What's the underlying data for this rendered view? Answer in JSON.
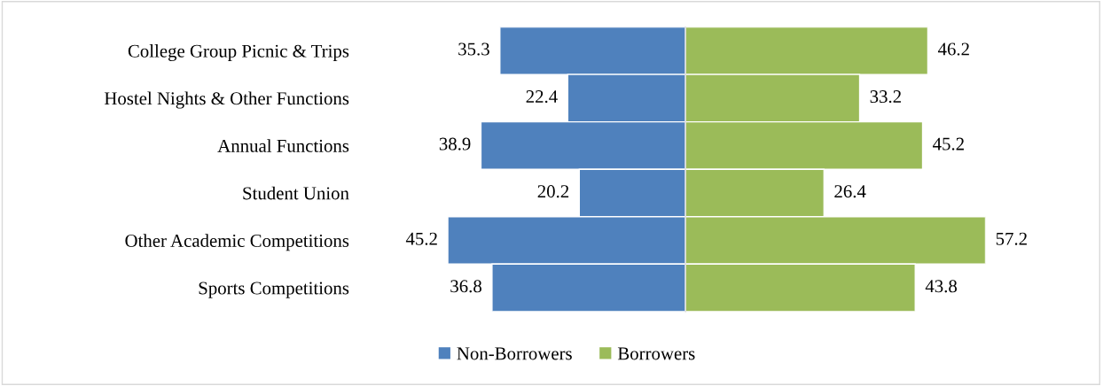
{
  "chart_data": [
    {
      "type": "bar",
      "orientation": "horizontal",
      "categories": [
        "College Group Picnic & Trips",
        "Hostel Nights & Other Functions",
        "Annual Functions",
        "Student Union",
        "Other Academic Competitions",
        "Sports Competitions"
      ],
      "series": [
        {
          "name": "Non-Borrowers",
          "color": "#4f81bd",
          "values": [
            35.3,
            22.4,
            38.9,
            20.2,
            45.2,
            36.8
          ]
        }
      ],
      "xlim": [
        45.2,
        0
      ],
      "tick_labels": "y",
      "data_labels": true,
      "legend": "bottom"
    },
    {
      "type": "bar",
      "orientation": "horizontal",
      "categories": [
        null,
        null,
        null,
        null,
        null,
        null
      ],
      "series": [
        {
          "name": "Borrowers",
          "color": "#9bbb59",
          "values": [
            46.2,
            33.2,
            45.2,
            26.4,
            57.2,
            43.8
          ],
          "value_labels": [
            "46.2",
            "33.2",
            "45.2",
            "26.4",
            "57.2",
            "43.8"
          ]
        }
      ],
      "xlim": [
        0,
        57.2
      ],
      "tick_labels": false,
      "legend": "bottom"
    }
  ]
}
